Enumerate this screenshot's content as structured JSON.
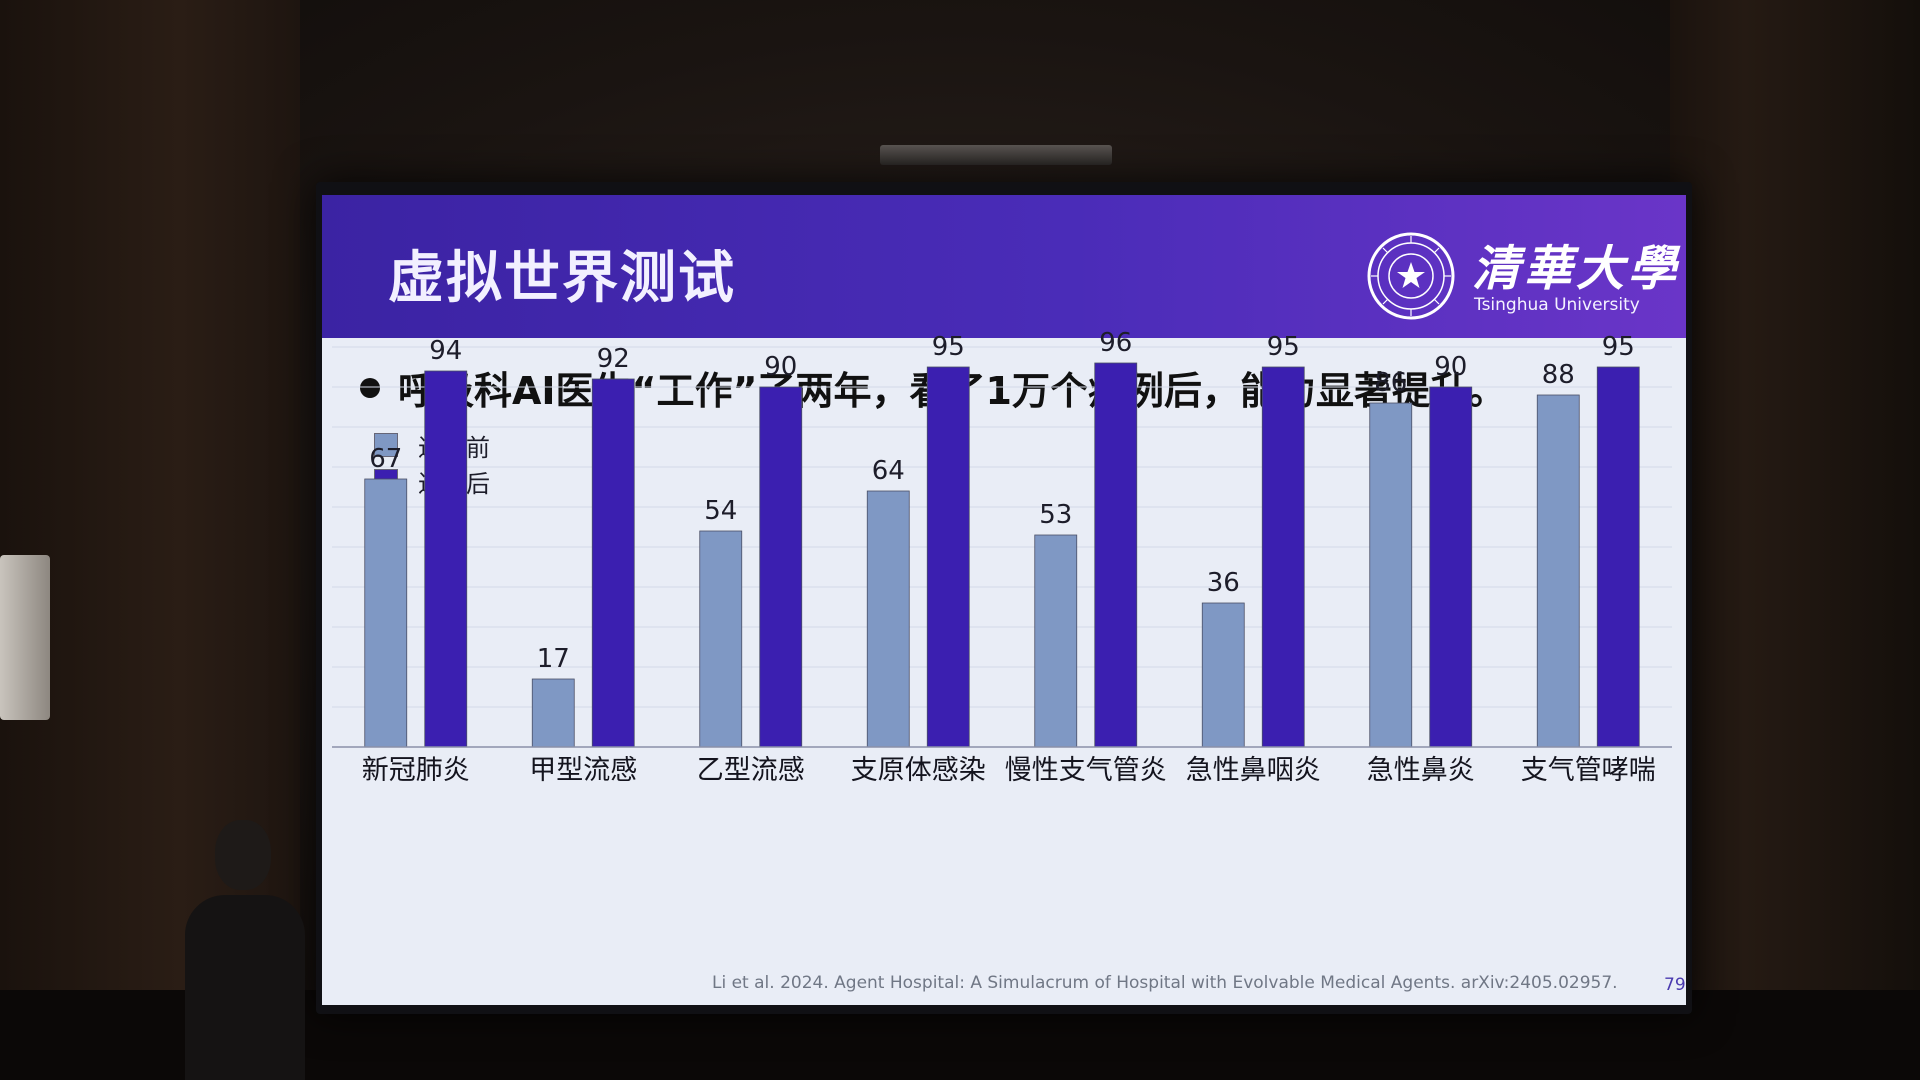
{
  "slide": {
    "title": "虚拟世界测试",
    "logo_cn": "清華大學",
    "logo_en": "Tsinghua University",
    "bullet": "呼吸科AI医生“工作”了两年，看了1万个病例后，能力显著提升。",
    "citation": "Li et al. 2024. Agent Hospital: A Simulacrum of Hospital with Evolvable Medical Agents. arXiv:2405.02957.",
    "page_number": "79"
  },
  "colors": {
    "header": "#4a2cb8",
    "before": "#7f98c4",
    "after": "#3b1fb0"
  },
  "chart_data": {
    "type": "bar",
    "title": "",
    "xlabel": "",
    "ylabel": "",
    "ylim": [
      0,
      100
    ],
    "grid": true,
    "legend_position": "top-left",
    "categories": [
      "新冠肺炎",
      "甲型流感",
      "乙型流感",
      "支原体感染",
      "慢性支气管炎",
      "急性鼻咽炎",
      "急性鼻炎",
      "支气管哮喘"
    ],
    "series": [
      {
        "name": "进化前",
        "values": [
          67,
          17,
          54,
          64,
          53,
          36,
          86,
          88
        ]
      },
      {
        "name": "进化后",
        "values": [
          94,
          92,
          90,
          95,
          96,
          95,
          90,
          95
        ]
      }
    ]
  }
}
